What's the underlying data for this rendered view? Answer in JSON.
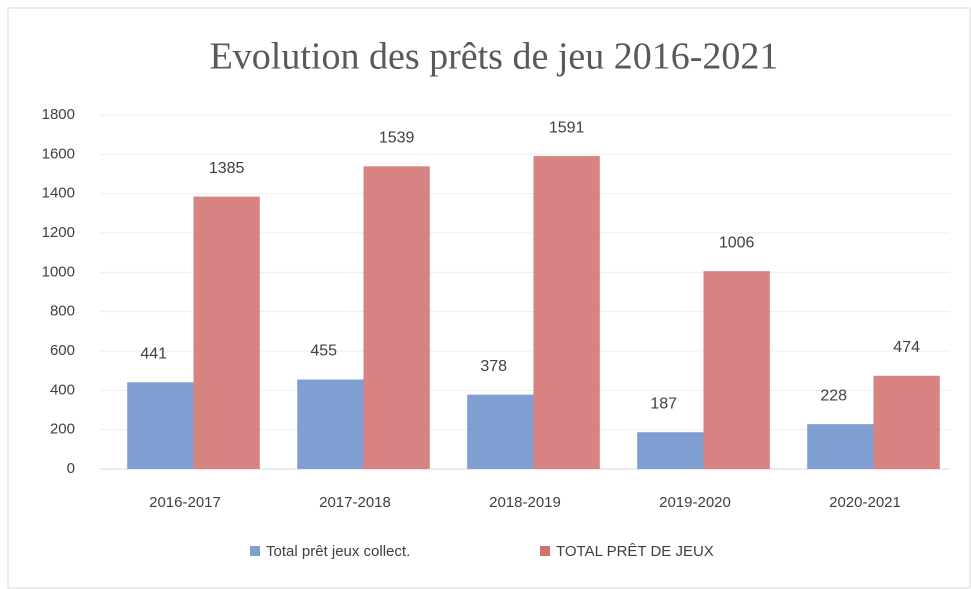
{
  "chart_data": {
    "type": "bar",
    "title": "Evolution des prêts de jeu 2016-2021",
    "categories": [
      "2016-2017",
      "2017-2018",
      "2018-2019",
      "2019-2020",
      "2020-2021"
    ],
    "series": [
      {
        "name": "Total prêt jeux collect.",
        "color": "#7f9fd3",
        "values": [
          441,
          455,
          378,
          187,
          228
        ]
      },
      {
        "name": "TOTAL PRÊT DE JEUX",
        "color": "#d27270",
        "values": [
          1385,
          1539,
          1591,
          1006,
          474
        ]
      }
    ],
    "ylim": [
      0,
      1800
    ],
    "yticks": [
      0,
      200,
      400,
      600,
      800,
      1000,
      1200,
      1400,
      1600,
      1800
    ],
    "grid": true,
    "legend": "bottom"
  }
}
